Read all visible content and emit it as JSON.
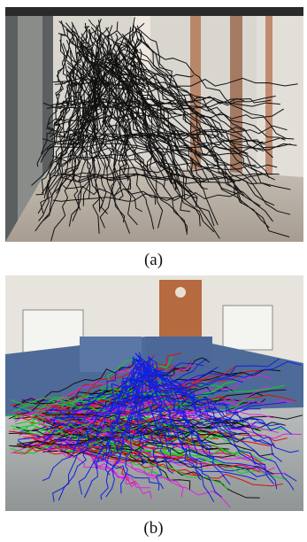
{
  "figures": [
    {
      "caption": "(a)"
    },
    {
      "caption": "(b)"
    }
  ]
}
